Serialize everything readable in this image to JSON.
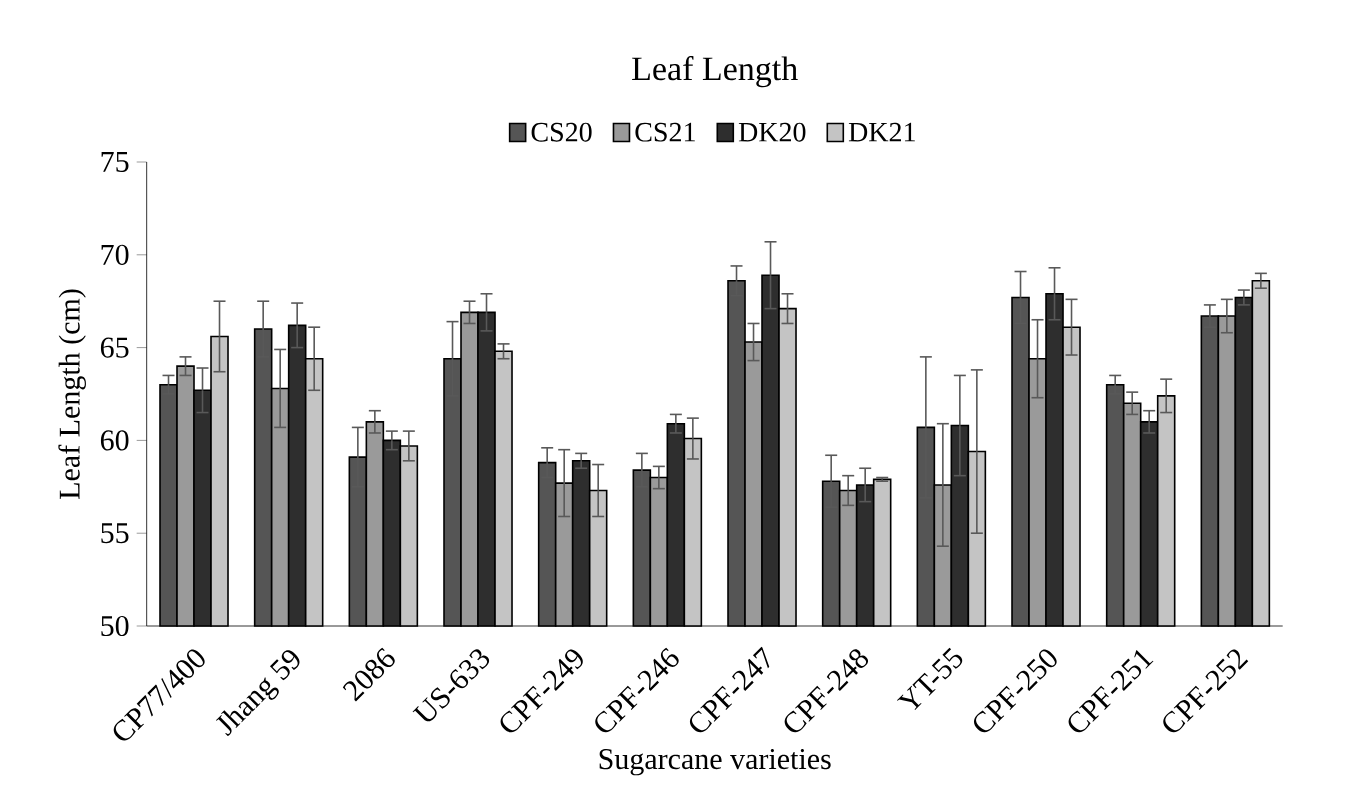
{
  "chart_data": {
    "type": "bar",
    "title": "Leaf Length",
    "xlabel": "Sugarcane varieties",
    "ylabel": "Leaf Length (cm)",
    "categories": [
      "CP77/400",
      "Jhang 59",
      "2086",
      "US-633",
      "CPF-249",
      "CPF-246",
      "CPF-247",
      "CPF-248",
      "YT-55",
      "CPF-250",
      "CPF-251",
      "CPF-252"
    ],
    "series": [
      {
        "name": "CS20",
        "color": "#555555",
        "values": [
          63.0,
          66.0,
          59.1,
          64.4,
          58.8,
          58.4,
          68.6,
          57.8,
          60.7,
          67.7,
          63.0,
          66.7
        ],
        "errors": [
          0.5,
          1.5,
          1.6,
          2.0,
          0.8,
          0.9,
          0.8,
          1.4,
          3.8,
          1.4,
          0.5,
          0.6
        ]
      },
      {
        "name": "CS21",
        "color": "#9a9a9a",
        "values": [
          64.0,
          62.8,
          61.0,
          66.9,
          57.7,
          58.0,
          65.3,
          57.3,
          57.6,
          64.4,
          62.0,
          66.7
        ],
        "errors": [
          0.5,
          2.1,
          0.6,
          0.6,
          1.8,
          0.6,
          1.0,
          0.8,
          3.3,
          2.1,
          0.6,
          0.9
        ]
      },
      {
        "name": "DK20",
        "color": "#2e2e2e",
        "values": [
          62.7,
          66.2,
          60.0,
          66.9,
          58.9,
          60.9,
          68.9,
          57.6,
          60.8,
          67.9,
          61.0,
          67.7
        ],
        "errors": [
          1.2,
          1.2,
          0.5,
          1.0,
          0.4,
          0.5,
          1.8,
          0.9,
          2.7,
          1.4,
          0.6,
          0.4
        ]
      },
      {
        "name": "DK21",
        "color": "#c4c4c4",
        "values": [
          65.6,
          64.4,
          59.7,
          64.8,
          57.3,
          60.1,
          67.1,
          57.9,
          59.4,
          66.1,
          62.4,
          68.6
        ],
        "errors": [
          1.9,
          1.7,
          0.8,
          0.4,
          1.4,
          1.1,
          0.8,
          0.1,
          4.4,
          1.5,
          0.9,
          0.4
        ]
      }
    ],
    "ylim": [
      50,
      75
    ],
    "yticks": [
      50,
      55,
      60,
      65,
      70,
      75
    ],
    "legend": "top"
  }
}
